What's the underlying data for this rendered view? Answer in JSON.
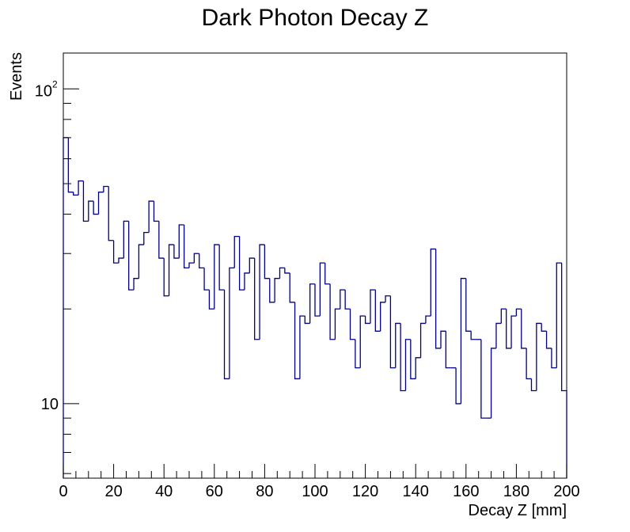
{
  "chart_data": {
    "type": "histogram",
    "title": "Dark Photon Decay Z",
    "xlabel": "Decay Z [mm]",
    "ylabel": "Events",
    "xlim": [
      0,
      200
    ],
    "ylim": [
      5.8,
      130
    ],
    "y_scale": "log",
    "x_ticks": [
      "0",
      "20",
      "40",
      "60",
      "80",
      "100",
      "120",
      "140",
      "160",
      "180",
      "200"
    ],
    "y_tick_labels": [
      {
        "value": 10,
        "label": "10"
      },
      {
        "value": 100,
        "base": "10",
        "exponent": "2"
      }
    ],
    "bin_width": 2,
    "line_color": "#000080",
    "values": [
      70,
      47,
      46,
      51,
      38,
      44,
      40,
      47,
      49,
      33,
      28,
      29,
      38,
      23,
      25,
      32,
      35,
      44,
      38,
      29,
      22,
      32,
      29,
      37,
      27,
      28,
      30,
      27,
      23,
      20,
      32,
      23,
      12,
      27,
      34,
      23,
      26,
      29,
      16,
      32,
      25,
      21,
      25,
      27,
      26,
      21,
      12,
      19,
      18,
      24,
      19,
      28,
      24,
      16,
      20,
      23,
      20,
      16,
      13,
      19,
      18,
      23,
      17,
      21,
      22,
      13,
      18,
      11,
      16,
      12,
      14,
      18,
      19,
      31,
      15,
      17,
      13,
      13,
      10,
      25,
      17,
      16,
      16,
      9,
      9,
      15,
      18,
      20,
      15,
      19,
      20,
      15,
      12,
      11,
      18,
      17,
      15,
      13,
      28,
      11
    ]
  }
}
